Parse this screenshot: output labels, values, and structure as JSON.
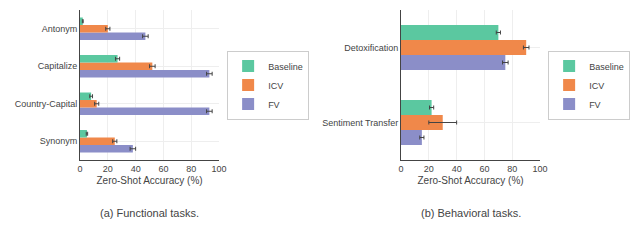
{
  "chart_data": [
    {
      "type": "bar",
      "orientation": "horizontal",
      "subtitle": "(a) Functional tasks.",
      "xlabel": "Zero-Shot Accuracy (%)",
      "categories": [
        "Synonym",
        "Country-Capital",
        "Capitalize",
        "Antonym"
      ],
      "series": [
        {
          "name": "Baseline",
          "color": "#5bc8a0",
          "values": [
            5.0,
            8.0,
            27.0,
            2.0
          ],
          "errors": [
            0.5,
            1.0,
            1.5,
            0.3
          ]
        },
        {
          "name": "ICV",
          "color": "#f0884a",
          "values": [
            25.0,
            12.0,
            52.0,
            20.0
          ],
          "errors": [
            1.5,
            1.5,
            2.0,
            1.5
          ]
        },
        {
          "name": "FV",
          "color": "#8b8ec8",
          "values": [
            38.0,
            93.0,
            93.0,
            47.0
          ],
          "errors": [
            2.0,
            2.0,
            2.0,
            2.0
          ]
        }
      ],
      "xlim": [
        0,
        100
      ],
      "xticks": [
        0,
        20,
        40,
        60,
        80,
        100
      ],
      "grid": true,
      "legend": "right"
    },
    {
      "type": "bar",
      "orientation": "horizontal",
      "subtitle": "(b) Behavioral tasks.",
      "xlabel": "Zero-Shot Accuracy (%)",
      "categories": [
        "Sentiment Transfer",
        "Detoxification"
      ],
      "series": [
        {
          "name": "Baseline",
          "color": "#5bc8a0",
          "values": [
            22.0,
            70.0
          ],
          "errors": [
            1.5,
            1.5
          ]
        },
        {
          "name": "ICV",
          "color": "#f0884a",
          "values": [
            30.0,
            90.0
          ],
          "errors": [
            10.0,
            2.0
          ]
        },
        {
          "name": "FV",
          "color": "#8b8ec8",
          "values": [
            15.0,
            75.0
          ],
          "errors": [
            1.5,
            2.0
          ]
        }
      ],
      "xlim": [
        0,
        100
      ],
      "xticks": [
        0,
        20,
        40,
        60,
        80,
        100
      ],
      "grid": true,
      "legend": "right"
    }
  ]
}
